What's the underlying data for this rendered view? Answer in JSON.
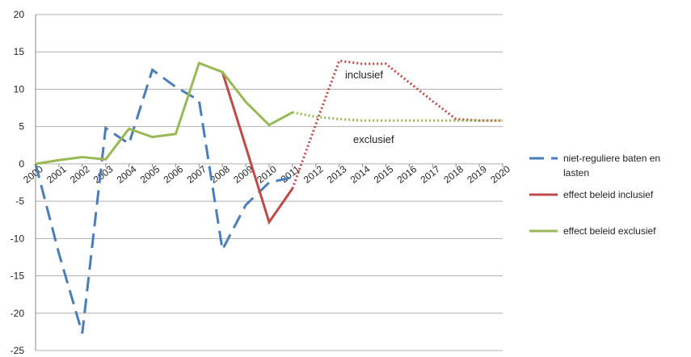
{
  "chart_data": {
    "type": "line",
    "categories": [
      "2000",
      "2001",
      "2002",
      "2003",
      "2004",
      "2005",
      "2006",
      "2007",
      "2008",
      "2009",
      "2010",
      "2011",
      "2012",
      "2013",
      "2014",
      "2015",
      "2016",
      "2017",
      "2018",
      "2019",
      "2020"
    ],
    "series": [
      {
        "name": "niet-reguliere baten en lasten",
        "color": "#4a7ebb",
        "style": "dashed",
        "values": [
          0,
          -12,
          -22.7,
          4.8,
          2.7,
          12.6,
          10.3,
          8.5,
          -11.5,
          -5.5,
          -2.5,
          -1.8,
          null,
          null,
          null,
          null,
          null,
          null,
          null,
          null,
          null
        ]
      },
      {
        "name": "effect beleid inclusief",
        "color": "#be4b48",
        "style": "solid",
        "dotted_from": "2011",
        "values": [
          null,
          null,
          null,
          null,
          null,
          null,
          null,
          null,
          12.3,
          2.3,
          -7.8,
          -3.3,
          5.3,
          13.8,
          13.4,
          13.4,
          10.9,
          8.4,
          6.0,
          5.8,
          5.8
        ]
      },
      {
        "name": "effect beleid exclusief",
        "color": "#98b954",
        "style": "solid",
        "dotted_from": "2011",
        "values": [
          0,
          0.5,
          0.9,
          0.6,
          4.7,
          3.6,
          4.0,
          13.5,
          12.3,
          8.3,
          5.2,
          6.9,
          6.3,
          6.0,
          5.8,
          5.8,
          5.8,
          5.8,
          5.8,
          5.8,
          5.8
        ]
      }
    ],
    "annotations": [
      "inclusief",
      "exclusief"
    ],
    "ylim": [
      -25,
      20
    ],
    "yticks": [
      -25,
      -20,
      -15,
      -10,
      -5,
      0,
      5,
      10,
      15,
      20
    ],
    "grid": true,
    "legend": "right"
  }
}
